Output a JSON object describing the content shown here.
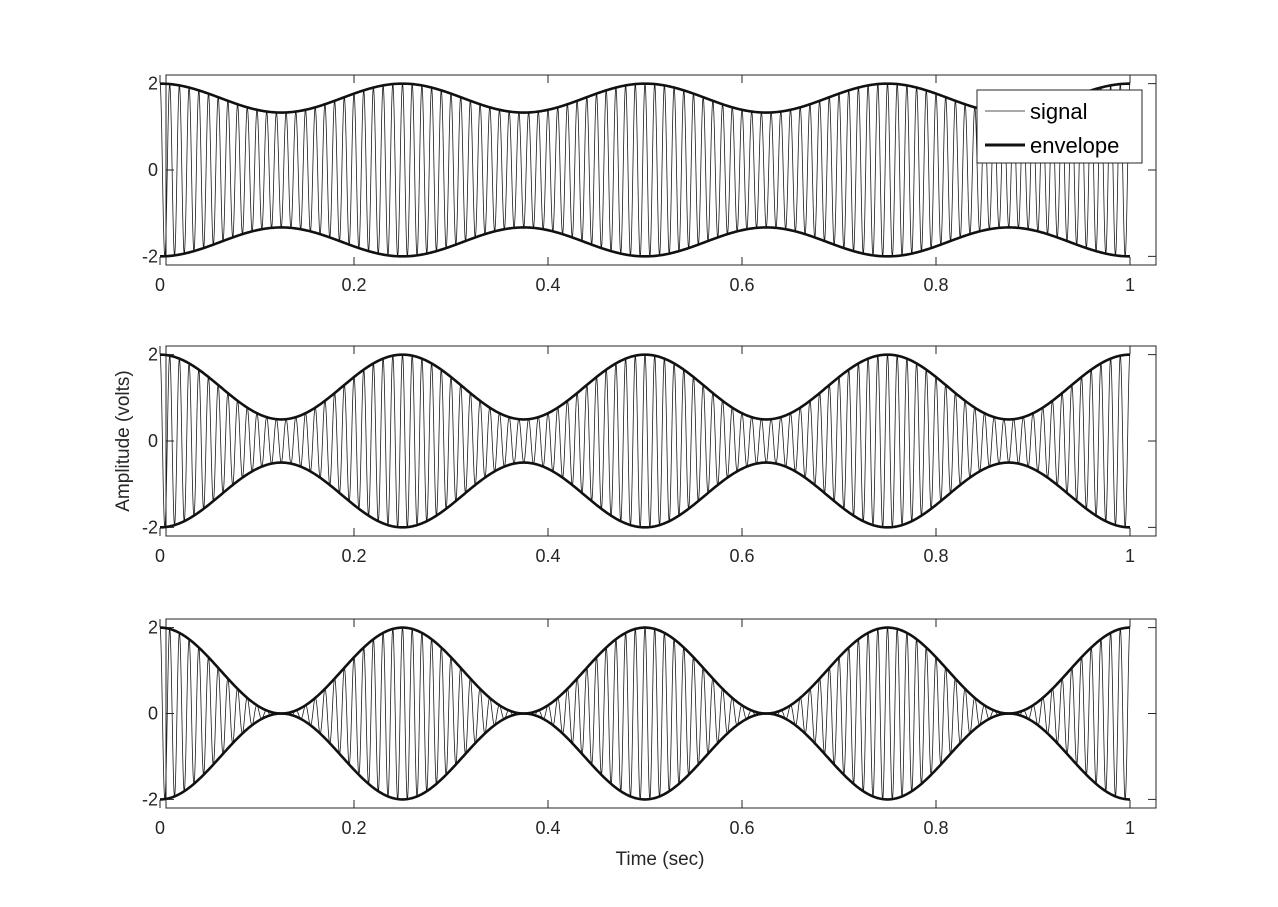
{
  "figure": {
    "xlabel": "Time (sec)",
    "ylabel": "Amplitude (volts)"
  },
  "legend": {
    "entries": [
      "signal",
      "envelope"
    ],
    "placement": "top-right of first subplot"
  },
  "chart_data": [
    {
      "type": "line",
      "subplot": 1,
      "x_range": [
        0,
        1
      ],
      "ylim": [
        -2.2,
        2.2
      ],
      "xticks": [
        "0",
        "0.2",
        "0.4",
        "0.6",
        "0.8",
        "1"
      ],
      "yticks": [
        "-2",
        "0",
        "2"
      ],
      "carrier_frequency_hz": 100,
      "modulation_frequency_hz": 4,
      "envelope_max": 2.0,
      "envelope_min": 1.33,
      "series": [
        {
          "name": "signal",
          "color": "#1a1a1a",
          "style": "thin"
        },
        {
          "name": "envelope",
          "color": "#111111",
          "style": "thick"
        }
      ]
    },
    {
      "type": "line",
      "subplot": 2,
      "x_range": [
        0,
        1
      ],
      "ylim": [
        -2.2,
        2.2
      ],
      "xticks": [
        "0",
        "0.2",
        "0.4",
        "0.6",
        "0.8",
        "1"
      ],
      "yticks": [
        "-2",
        "0",
        "2"
      ],
      "carrier_frequency_hz": 100,
      "modulation_frequency_hz": 4,
      "envelope_max": 2.0,
      "envelope_min": 0.5,
      "series": [
        {
          "name": "signal",
          "color": "#1a1a1a",
          "style": "thin"
        },
        {
          "name": "envelope",
          "color": "#111111",
          "style": "thick"
        }
      ]
    },
    {
      "type": "line",
      "subplot": 3,
      "x_range": [
        0,
        1
      ],
      "ylim": [
        -2.2,
        2.2
      ],
      "xticks": [
        "0",
        "0.2",
        "0.4",
        "0.6",
        "0.8",
        "1"
      ],
      "yticks": [
        "-2",
        "0",
        "2"
      ],
      "carrier_frequency_hz": 100,
      "modulation_frequency_hz": 4,
      "envelope_max": 2.0,
      "envelope_min": 0.0,
      "series": [
        {
          "name": "signal",
          "color": "#1a1a1a",
          "style": "thin"
        },
        {
          "name": "envelope",
          "color": "#111111",
          "style": "thick"
        }
      ]
    }
  ]
}
